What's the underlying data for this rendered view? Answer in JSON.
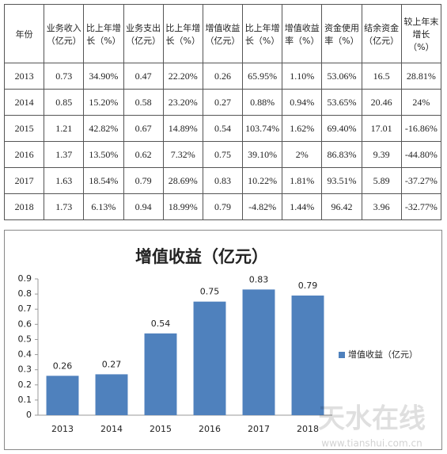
{
  "table": {
    "header": [
      "年份",
      "业务收入（亿元）",
      "比上年增长（%）",
      "业务支出（亿元）",
      "比上年增长（%）",
      "增值收益（亿元）",
      "比上年增长（%）",
      "增值收益率（%）",
      "资金使用率（%）",
      "结余资金（亿元）",
      "较上年末增长（%）"
    ],
    "rows": [
      [
        "2013",
        "0.73",
        "34.90%",
        "0.47",
        "22.20%",
        "0.26",
        "65.95%",
        "1.10%",
        "53.06%",
        "16.5",
        "28.81%"
      ],
      [
        "2014",
        "0.85",
        "15.20%",
        "0.58",
        "23.20%",
        "0.27",
        "0.88%",
        "0.94%",
        "53.65%",
        "20.46",
        "24%"
      ],
      [
        "2015",
        "1.21",
        "42.82%",
        "0.67",
        "14.89%",
        "0.54",
        "103.74%",
        "1.62%",
        "69.40%",
        "17.01",
        "-16.86%"
      ],
      [
        "2016",
        "1.37",
        "13.50%",
        "0.62",
        "7.32%",
        "0.75",
        "39.10%",
        "2%",
        "86.83%",
        "9.39",
        "-44.80%"
      ],
      [
        "2017",
        "1.63",
        "18.54%",
        "0.79",
        "28.69%",
        "0.83",
        "10.22%",
        "1.81%",
        "93.51%",
        "5.89",
        "-37.27%"
      ],
      [
        "2018",
        "1.73",
        "6.13%",
        "0.94",
        "18.99%",
        "0.79",
        "-4.82%",
        "1.44%",
        "96.42",
        "3.96",
        "-32.77%"
      ]
    ]
  },
  "chart_data": {
    "type": "bar",
    "title": "增值收益（亿元）",
    "categories": [
      "2013",
      "2014",
      "2015",
      "2016",
      "2017",
      "2018"
    ],
    "series": [
      {
        "name": "增值收益（亿元）",
        "color": "#4f81bd",
        "values": [
          0.26,
          0.27,
          0.54,
          0.75,
          0.83,
          0.79
        ]
      }
    ],
    "ylim": [
      0,
      0.9
    ],
    "yticks": [
      0,
      0.1,
      0.2,
      0.3,
      0.4,
      0.5,
      0.6,
      0.7,
      0.8,
      0.9
    ],
    "grid": false,
    "legend": "right"
  },
  "watermark": {
    "text": "天水在线",
    "url": "www.tianshui.com.cn"
  }
}
